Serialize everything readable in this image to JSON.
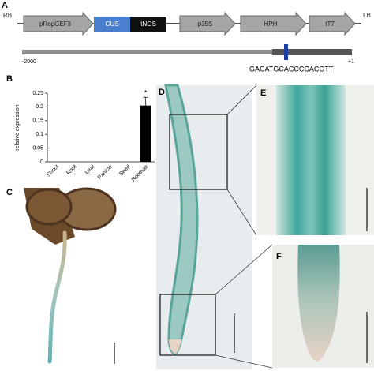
{
  "panel_labels": [
    "A",
    "B",
    "C",
    "D",
    "E",
    "F"
  ],
  "construct": {
    "left_border": "RB",
    "right_border": "LB",
    "elements": [
      "pRopGEF3",
      "GUS",
      "tNOS",
      "p35S",
      "HPH",
      "tT7"
    ]
  },
  "promoter": {
    "start": "-2000",
    "end": "+1",
    "motif": "GACATGCACCCCACGTT"
  },
  "chart_data": {
    "type": "bar",
    "y_label": "relative expression",
    "categories": [
      "Shoot",
      "Root",
      "Leaf",
      "Panicle",
      "Seed",
      "Roothair"
    ],
    "values": [
      0,
      0,
      0,
      0,
      0,
      0.205
    ],
    "errors": [
      0,
      0,
      0,
      0,
      0,
      0.03
    ],
    "color": "#000000",
    "ylim": [
      0,
      0.25
    ],
    "yticks": [
      0,
      0.05,
      0.1,
      0.15,
      0.2,
      0.25
    ],
    "annotations": [
      "*"
    ]
  }
}
